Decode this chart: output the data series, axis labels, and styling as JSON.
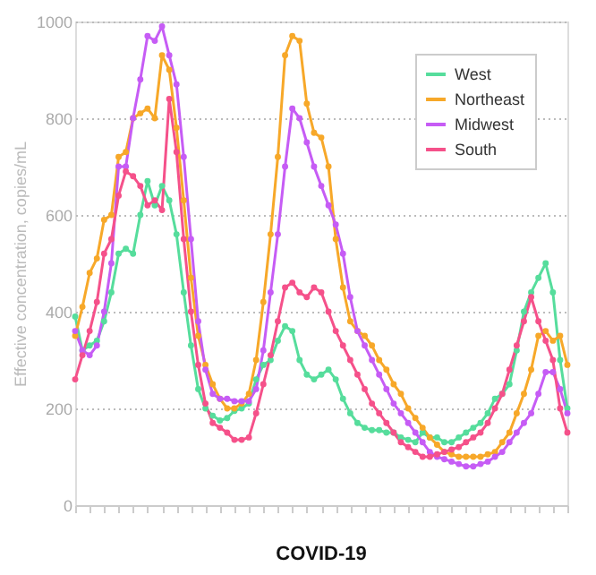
{
  "chart_data": {
    "type": "line",
    "title": "COVID-19",
    "ylabel": "Effective concentration, copies/mL",
    "categories": [
      null,
      null,
      null,
      null,
      null,
      null,
      null,
      null,
      null,
      null,
      null,
      null,
      null,
      null,
      null,
      null,
      null,
      null,
      null,
      null,
      null,
      null,
      null,
      null,
      null,
      null,
      null,
      null,
      null,
      null,
      null,
      null,
      null,
      null,
      null,
      null,
      null,
      null,
      null,
      null,
      null,
      null,
      null,
      null,
      null,
      null,
      null,
      null,
      null,
      null,
      null,
      null,
      null,
      null,
      null,
      null,
      null,
      null,
      null,
      null,
      null,
      null,
      null,
      null,
      null,
      null,
      null,
      null,
      null
    ],
    "series": [
      {
        "name": "West",
        "color": "#56dd9c",
        "values": [
          390,
          320,
          330,
          340,
          380,
          440,
          520,
          530,
          520,
          600,
          670,
          620,
          660,
          630,
          560,
          440,
          330,
          240,
          200,
          185,
          175,
          180,
          195,
          200,
          210,
          260,
          290,
          300,
          340,
          370,
          360,
          300,
          270,
          260,
          270,
          280,
          260,
          220,
          190,
          170,
          160,
          155,
          155,
          150,
          150,
          140,
          135,
          130,
          150,
          140,
          140,
          130,
          130,
          140,
          150,
          160,
          170,
          190,
          220,
          230,
          250,
          320,
          400,
          440,
          470,
          500,
          440,
          300,
          200
        ]
      },
      {
        "name": "Northeast",
        "color": "#f7a829",
        "values": [
          350,
          410,
          480,
          510,
          590,
          600,
          720,
          730,
          800,
          810,
          820,
          800,
          930,
          900,
          780,
          630,
          470,
          350,
          290,
          250,
          220,
          200,
          200,
          210,
          230,
          300,
          420,
          560,
          720,
          930,
          970,
          960,
          830,
          770,
          760,
          700,
          550,
          450,
          380,
          360,
          350,
          330,
          300,
          280,
          250,
          230,
          200,
          180,
          160,
          140,
          125,
          110,
          105,
          100,
          100,
          100,
          100,
          105,
          110,
          130,
          150,
          190,
          230,
          280,
          350,
          360,
          340,
          350,
          290
        ]
      },
      {
        "name": "Midwest",
        "color": "#c65cf5",
        "values": [
          360,
          320,
          310,
          330,
          400,
          500,
          700,
          700,
          800,
          880,
          970,
          960,
          990,
          930,
          870,
          720,
          550,
          380,
          280,
          230,
          220,
          220,
          215,
          215,
          215,
          240,
          320,
          440,
          560,
          700,
          820,
          800,
          750,
          700,
          660,
          620,
          580,
          520,
          430,
          360,
          330,
          300,
          270,
          240,
          210,
          190,
          170,
          150,
          130,
          110,
          100,
          95,
          90,
          85,
          80,
          80,
          85,
          90,
          100,
          110,
          130,
          150,
          170,
          190,
          230,
          275,
          275,
          240,
          190
        ]
      },
      {
        "name": "South",
        "color": "#f5518a",
        "values": [
          260,
          310,
          360,
          420,
          520,
          550,
          640,
          690,
          680,
          660,
          620,
          630,
          610,
          840,
          730,
          550,
          400,
          290,
          210,
          170,
          160,
          150,
          135,
          135,
          140,
          190,
          250,
          310,
          380,
          450,
          460,
          440,
          430,
          450,
          440,
          400,
          360,
          330,
          300,
          270,
          240,
          210,
          190,
          170,
          150,
          130,
          120,
          110,
          100,
          100,
          105,
          110,
          115,
          120,
          130,
          140,
          150,
          170,
          200,
          230,
          280,
          330,
          380,
          430,
          380,
          340,
          300,
          200,
          150
        ]
      }
    ],
    "ylim": [
      0,
      1000
    ],
    "yticks": [
      0,
      200,
      400,
      600,
      800,
      1000
    ],
    "grid": "y",
    "legend": "top right",
    "marker": "circle",
    "line_style": "solid"
  }
}
